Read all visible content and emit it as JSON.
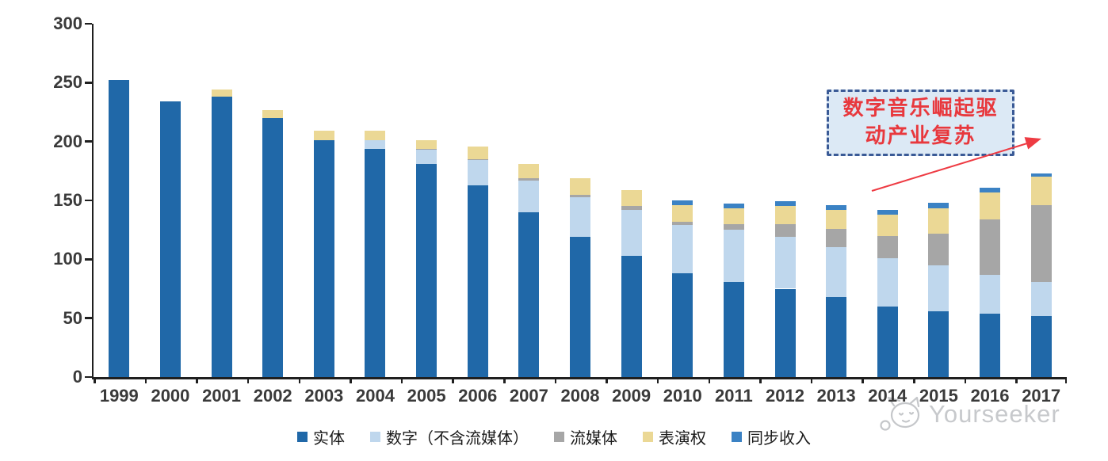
{
  "chart_data": {
    "type": "bar",
    "stacked": true,
    "title": "",
    "xlabel": "",
    "ylabel": "",
    "categories": [
      "1999",
      "2000",
      "2001",
      "2002",
      "2003",
      "2004",
      "2005",
      "2006",
      "2007",
      "2008",
      "2009",
      "2010",
      "2011",
      "2012",
      "2013",
      "2014",
      "2015",
      "2016",
      "2017"
    ],
    "series": [
      {
        "name": "实体",
        "key": "physical",
        "color": "#2068A8",
        "values": [
          252,
          234,
          238,
          220,
          201,
          194,
          181,
          163,
          140,
          119,
          103,
          88,
          81,
          75,
          68,
          60,
          56,
          54,
          52
        ]
      },
      {
        "name": "数字（不含流媒体）",
        "key": "digital-excl-streaming",
        "color": "#BFD7ED",
        "values": [
          0,
          0,
          0,
          0,
          0,
          7,
          12,
          21,
          27,
          34,
          39,
          41,
          44,
          44,
          42,
          41,
          39,
          33,
          29
        ]
      },
      {
        "name": "流媒体",
        "key": "streaming",
        "color": "#A6A6A6",
        "values": [
          0,
          0,
          0,
          0,
          0,
          0,
          1,
          1,
          2,
          2,
          3,
          3,
          5,
          11,
          16,
          19,
          27,
          47,
          65
        ]
      },
      {
        "name": "表演权",
        "key": "performance-rights",
        "color": "#EBD895",
        "values": [
          0,
          0,
          6,
          7,
          8,
          8,
          7,
          11,
          12,
          14,
          14,
          14,
          13,
          15,
          16,
          18,
          21,
          23,
          24
        ]
      },
      {
        "name": "同步收入",
        "key": "sync-revenue",
        "color": "#3B82C4",
        "values": [
          0,
          0,
          0,
          0,
          0,
          0,
          0,
          0,
          0,
          0,
          0,
          4,
          4,
          4,
          4,
          4,
          5,
          4,
          3
        ]
      }
    ],
    "ylim": [
      0,
      300
    ],
    "yticks": [
      0,
      50,
      100,
      150,
      200,
      250,
      300
    ],
    "grid": false,
    "legend_position": "bottom"
  },
  "annotation": {
    "line1": "数字音乐崛起驱",
    "line2": "动产业复苏",
    "text_color": "#E8383D",
    "box_fill": "#DCE9F5",
    "border_color": "#3A5A96",
    "arrow_color": "#EE3B43"
  },
  "watermark": {
    "text": "Yourseeker",
    "color": "#C7C9CC",
    "logo": "mascot-cat-icon"
  },
  "axis_color": "#1F1F1F",
  "label_color": "#3A3A3A"
}
